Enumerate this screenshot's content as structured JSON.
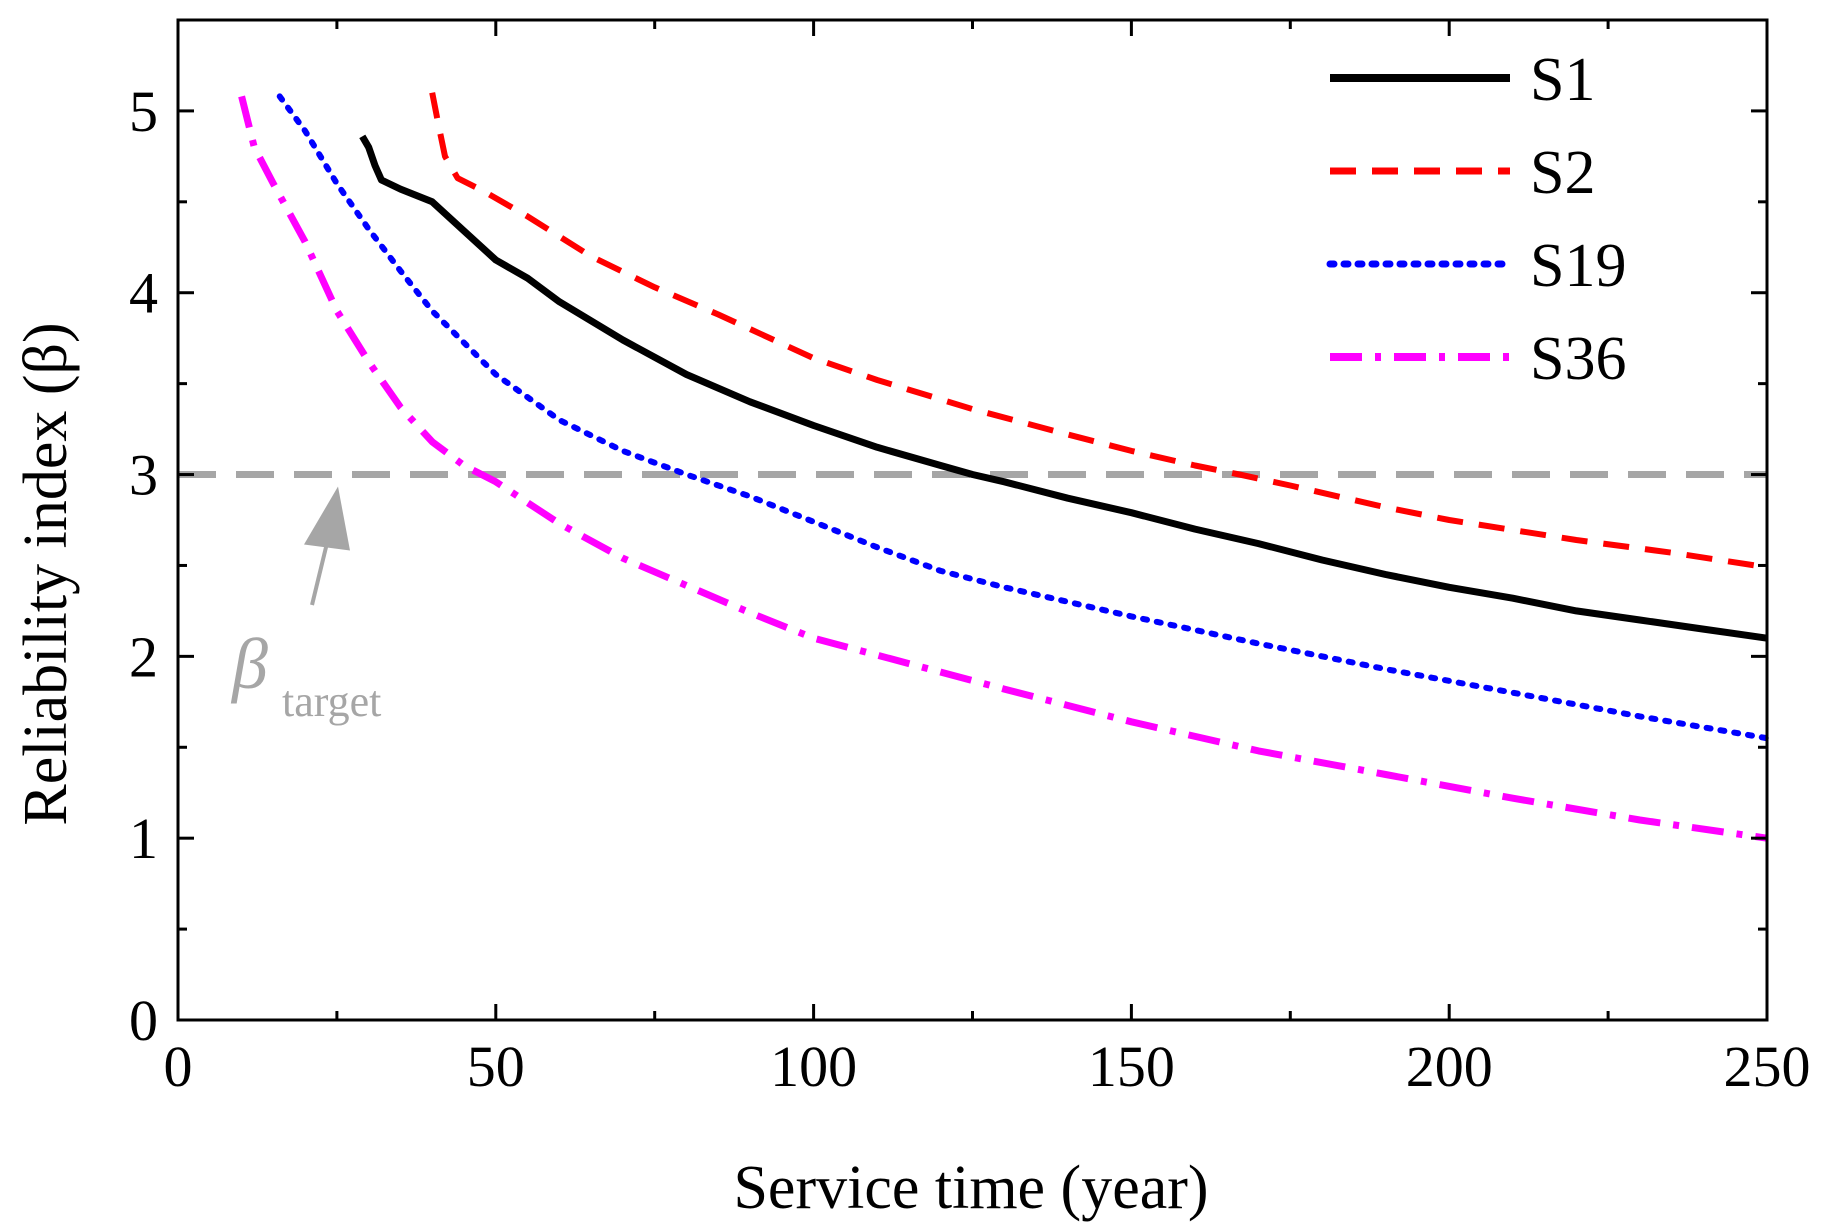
{
  "chart_data": {
    "type": "line",
    "title": "",
    "xlabel": "Service time (year)",
    "ylabel": "Reliability index (β)",
    "xlim": [
      0,
      250
    ],
    "ylim": [
      0,
      5.5
    ],
    "x_ticks": [
      0,
      50,
      100,
      150,
      200,
      250
    ],
    "y_ticks": [
      0,
      1,
      2,
      3,
      4,
      5
    ],
    "grid": false,
    "legend_position": "top-right",
    "series": [
      {
        "name": "S1",
        "color": "#000000",
        "dash": "solid",
        "points": [
          [
            29,
            4.86
          ],
          [
            30,
            4.8
          ],
          [
            31,
            4.7
          ],
          [
            32,
            4.62
          ],
          [
            35,
            4.57
          ],
          [
            40,
            4.5
          ],
          [
            45,
            4.34
          ],
          [
            50,
            4.18
          ],
          [
            55,
            4.08
          ],
          [
            60,
            3.95
          ],
          [
            70,
            3.74
          ],
          [
            80,
            3.55
          ],
          [
            90,
            3.4
          ],
          [
            100,
            3.27
          ],
          [
            110,
            3.15
          ],
          [
            120,
            3.05
          ],
          [
            125,
            3.0
          ],
          [
            130,
            2.96
          ],
          [
            140,
            2.87
          ],
          [
            150,
            2.79
          ],
          [
            160,
            2.7
          ],
          [
            170,
            2.62
          ],
          [
            180,
            2.53
          ],
          [
            190,
            2.45
          ],
          [
            200,
            2.38
          ],
          [
            210,
            2.32
          ],
          [
            220,
            2.25
          ],
          [
            230,
            2.2
          ],
          [
            240,
            2.15
          ],
          [
            250,
            2.1
          ]
        ]
      },
      {
        "name": "S2",
        "color": "#ff0000",
        "dash": "dashed",
        "points": [
          [
            40,
            5.1
          ],
          [
            41,
            4.92
          ],
          [
            42,
            4.75
          ],
          [
            44,
            4.63
          ],
          [
            48,
            4.56
          ],
          [
            55,
            4.42
          ],
          [
            65,
            4.2
          ],
          [
            75,
            4.03
          ],
          [
            85,
            3.88
          ],
          [
            100,
            3.64
          ],
          [
            110,
            3.52
          ],
          [
            125,
            3.36
          ],
          [
            140,
            3.22
          ],
          [
            150,
            3.13
          ],
          [
            160,
            3.05
          ],
          [
            167,
            3.0
          ],
          [
            175,
            2.94
          ],
          [
            190,
            2.82
          ],
          [
            200,
            2.75
          ],
          [
            220,
            2.64
          ],
          [
            235,
            2.57
          ],
          [
            250,
            2.49
          ]
        ]
      },
      {
        "name": "S19",
        "color": "#0000ff",
        "dash": "dotted",
        "points": [
          [
            16,
            5.08
          ],
          [
            20,
            4.89
          ],
          [
            25,
            4.6
          ],
          [
            30,
            4.35
          ],
          [
            35,
            4.12
          ],
          [
            40,
            3.9
          ],
          [
            50,
            3.55
          ],
          [
            60,
            3.3
          ],
          [
            70,
            3.13
          ],
          [
            80,
            3.0
          ],
          [
            90,
            2.88
          ],
          [
            100,
            2.74
          ],
          [
            110,
            2.6
          ],
          [
            120,
            2.47
          ],
          [
            130,
            2.38
          ],
          [
            140,
            2.3
          ],
          [
            150,
            2.22
          ],
          [
            170,
            2.07
          ],
          [
            190,
            1.93
          ],
          [
            210,
            1.8
          ],
          [
            230,
            1.67
          ],
          [
            250,
            1.55
          ]
        ]
      },
      {
        "name": "S36",
        "color": "#ff00ff",
        "dash": "dashdot",
        "points": [
          [
            10,
            5.08
          ],
          [
            12,
            4.8
          ],
          [
            15,
            4.6
          ],
          [
            20,
            4.28
          ],
          [
            25,
            3.9
          ],
          [
            30,
            3.62
          ],
          [
            35,
            3.37
          ],
          [
            40,
            3.18
          ],
          [
            45,
            3.05
          ],
          [
            50,
            2.96
          ],
          [
            60,
            2.73
          ],
          [
            70,
            2.54
          ],
          [
            80,
            2.39
          ],
          [
            90,
            2.24
          ],
          [
            100,
            2.1
          ],
          [
            115,
            1.96
          ],
          [
            130,
            1.82
          ],
          [
            150,
            1.64
          ],
          [
            170,
            1.48
          ],
          [
            190,
            1.35
          ],
          [
            210,
            1.22
          ],
          [
            230,
            1.1
          ],
          [
            250,
            1.0
          ]
        ]
      }
    ],
    "reference_line": {
      "y": 3,
      "color": "#a6a6a6",
      "dash": "dashed",
      "label_symbol": "β",
      "label_subscript": "target"
    }
  }
}
